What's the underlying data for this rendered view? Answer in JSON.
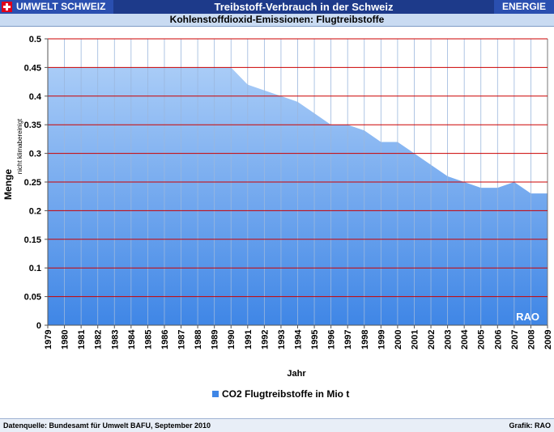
{
  "header": {
    "brand": "UMWELT SCHWEIZ",
    "title": "Treibstoff-Verbrauch in der Schweiz",
    "category": "ENERGIE",
    "subtitle": "Kohlenstoffdioxid-Emissionen: Flugtreibstoffe"
  },
  "footer": {
    "source": "Datenquelle: Bundesamt für Umwelt BAFU, September 2010",
    "credit": "Grafik: RAO"
  },
  "watermark": "RAO",
  "colors": {
    "header_bg": "#1d3a8a",
    "area_fill_top": "#a9ccf7",
    "area_fill_bottom": "#3f86e6",
    "gridline": "#cc0000"
  },
  "chart_data": {
    "type": "area",
    "x": [
      "1979",
      "1980",
      "1981",
      "1982",
      "1983",
      "1984",
      "1985",
      "1986",
      "1987",
      "1988",
      "1989",
      "1990",
      "1991",
      "1992",
      "1993",
      "1994",
      "1995",
      "1996",
      "1997",
      "1998",
      "1999",
      "2000",
      "2001",
      "2002",
      "2003",
      "2004",
      "2005",
      "2006",
      "2007",
      "2008",
      "2009"
    ],
    "series": [
      {
        "name": "CO2 Flugtreibstoffe in Mio t",
        "values": [
          0.45,
          0.45,
          0.45,
          0.45,
          0.45,
          0.45,
          0.45,
          0.45,
          0.45,
          0.45,
          0.45,
          0.45,
          0.42,
          0.41,
          0.4,
          0.39,
          0.37,
          0.35,
          0.35,
          0.34,
          0.32,
          0.32,
          0.3,
          0.28,
          0.26,
          0.25,
          0.24,
          0.24,
          0.25,
          0.23,
          0.23
        ]
      }
    ],
    "xlabel": "Jahr",
    "ylabel": "Menge",
    "ylabel_note": "nicht klimabereinigt",
    "ylim": [
      0,
      0.5
    ],
    "yticks": [
      "0",
      "0.05",
      "0.1",
      "0.15",
      "0.2",
      "0.25",
      "0.3",
      "0.35",
      "0.4",
      "0.45",
      "0.5"
    ],
    "grid": true,
    "legend": "bottom"
  }
}
